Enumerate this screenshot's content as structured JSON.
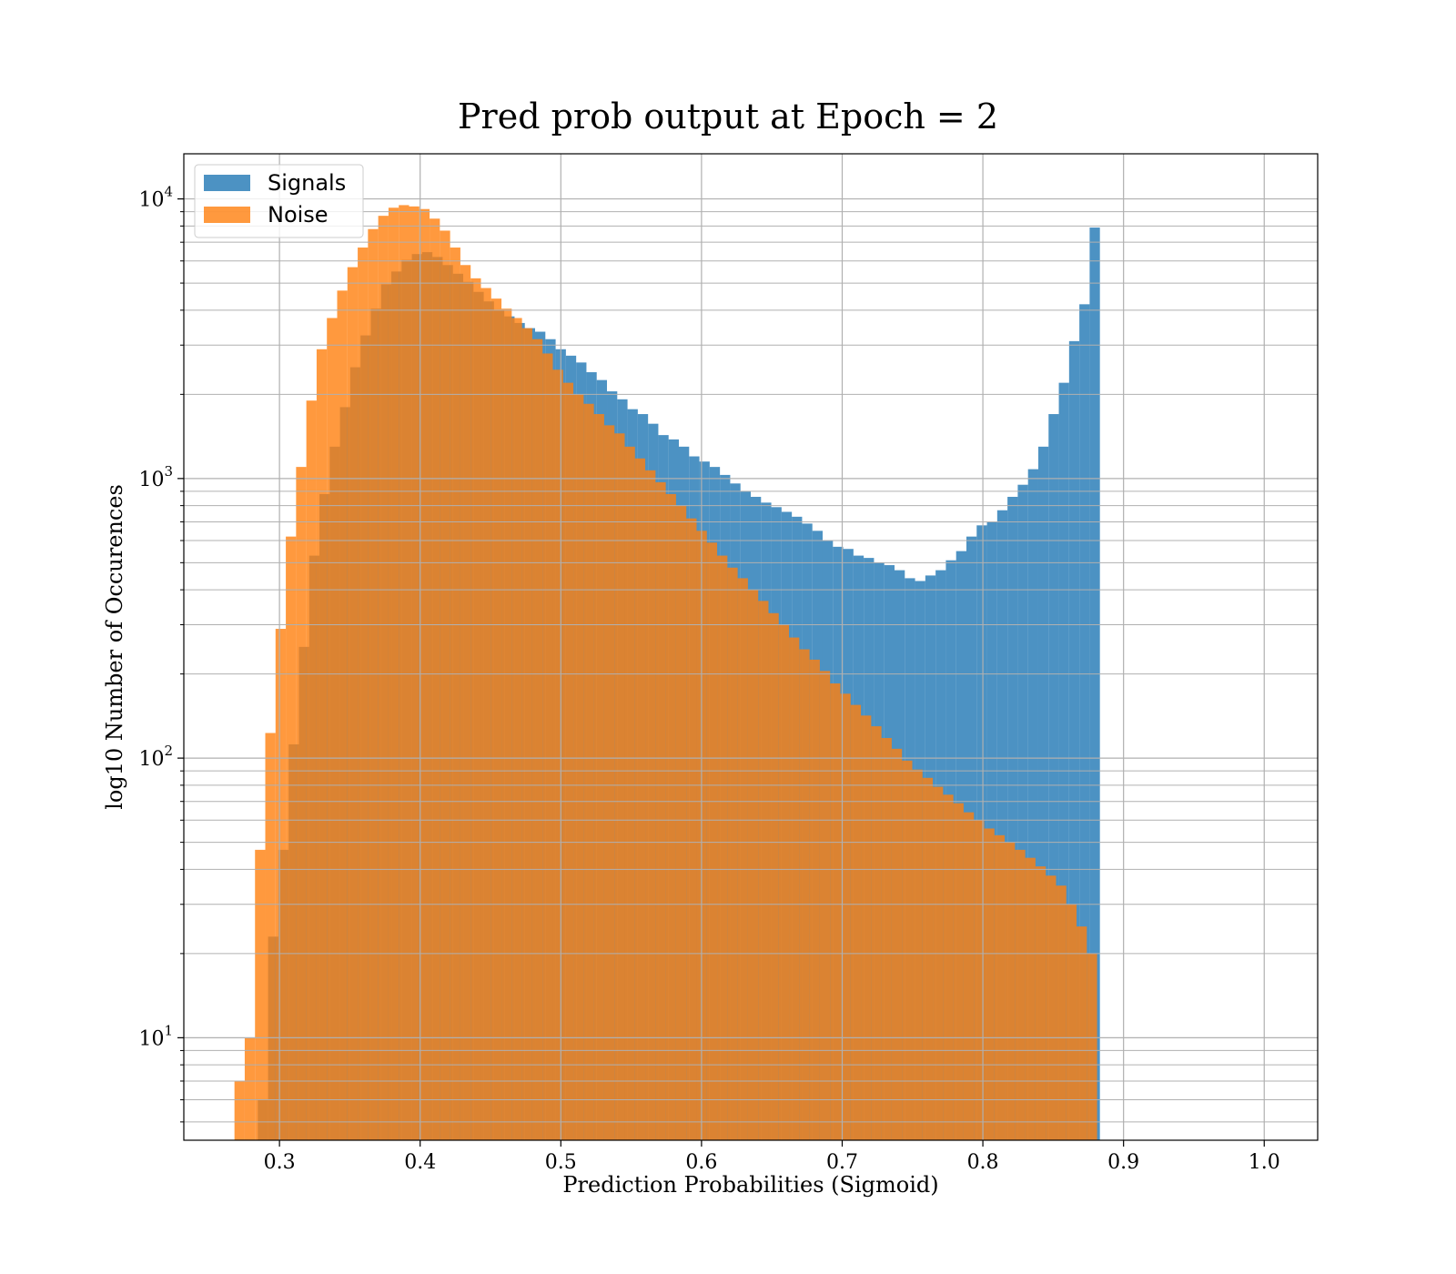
{
  "chart_data": {
    "type": "bar",
    "title": "Pred prob output at Epoch = 2",
    "xlabel": "Prediction Probabilities (Sigmoid)",
    "ylabel": "log10 Number of Occurences",
    "x_scale": "linear",
    "y_scale": "log",
    "xlim": [
      0.232,
      1.038
    ],
    "ylim": [
      4.3,
      14500
    ],
    "x_ticks": [
      {
        "value": 0.3,
        "label": "0.3"
      },
      {
        "value": 0.4,
        "label": "0.4"
      },
      {
        "value": 0.5,
        "label": "0.5"
      },
      {
        "value": 0.6,
        "label": "0.6"
      },
      {
        "value": 0.7,
        "label": "0.7"
      },
      {
        "value": 0.8,
        "label": "0.8"
      },
      {
        "value": 0.9,
        "label": "0.9"
      },
      {
        "value": 1.0,
        "label": "1.0"
      }
    ],
    "y_ticks": [
      {
        "value": 10,
        "base": "10",
        "exp": "1"
      },
      {
        "value": 100,
        "base": "10",
        "exp": "2"
      },
      {
        "value": 1000,
        "base": "10",
        "exp": "3"
      },
      {
        "value": 10000,
        "base": "10",
        "exp": "4"
      }
    ],
    "grid": true,
    "legend_position": "top-left",
    "series": [
      {
        "name": "Signals",
        "color": "#1f77b4",
        "alpha": 0.8,
        "bin_start": 0.27,
        "bin_width": 0.0073,
        "values": [
          0,
          0,
          6,
          23,
          47,
          112,
          250,
          530,
          880,
          1300,
          1800,
          2500,
          3250,
          4050,
          4950,
          5500,
          6050,
          6350,
          6450,
          6200,
          5800,
          5400,
          5050,
          4650,
          4300,
          4000,
          3800,
          3600,
          3450,
          3350,
          3150,
          2900,
          2750,
          2600,
          2400,
          2250,
          2050,
          1920,
          1770,
          1700,
          1570,
          1430,
          1380,
          1300,
          1200,
          1150,
          1100,
          1030,
          960,
          900,
          860,
          820,
          790,
          760,
          730,
          690,
          650,
          600,
          570,
          560,
          530,
          520,
          500,
          490,
          470,
          440,
          430,
          450,
          470,
          510,
          550,
          620,
          680,
          700,
          770,
          860,
          950,
          1080,
          1300,
          1700,
          2200,
          3100,
          4200,
          7900
        ]
      },
      {
        "name": "Noise",
        "color": "#ff7f0e",
        "alpha": 0.8,
        "bin_start": 0.268,
        "bin_width": 0.0073,
        "values": [
          7,
          10,
          47,
          123,
          290,
          620,
          1100,
          1900,
          2900,
          3750,
          4700,
          5700,
          6700,
          7800,
          8700,
          9300,
          9500,
          9400,
          9200,
          8500,
          7700,
          6700,
          5800,
          5200,
          4800,
          4400,
          4050,
          3750,
          3450,
          3150,
          2800,
          2450,
          2200,
          2000,
          1850,
          1700,
          1550,
          1450,
          1300,
          1180,
          1070,
          970,
          880,
          800,
          720,
          650,
          590,
          530,
          480,
          440,
          400,
          365,
          330,
          300,
          270,
          245,
          225,
          205,
          185,
          170,
          155,
          142,
          130,
          118,
          108,
          98,
          91,
          85,
          79,
          74,
          69,
          64,
          60,
          56,
          53,
          50,
          47,
          44,
          41,
          38,
          35,
          30,
          25,
          20
        ]
      }
    ]
  }
}
